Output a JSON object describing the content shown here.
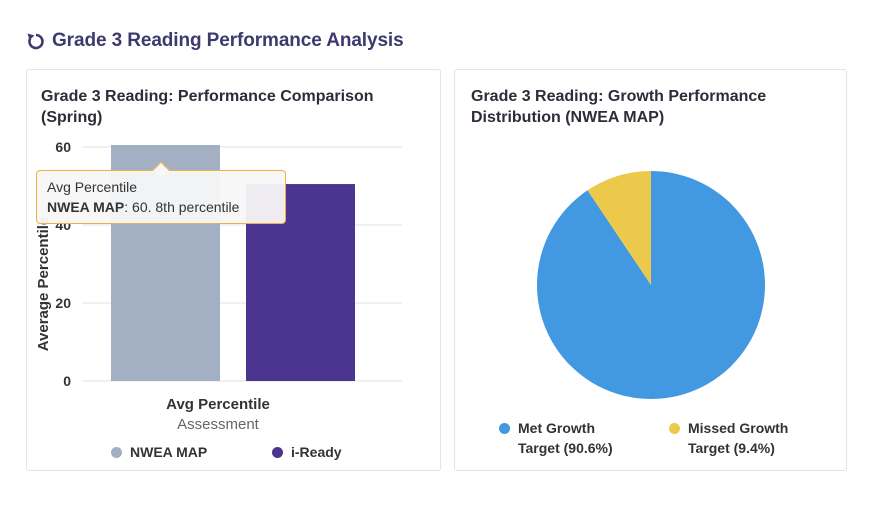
{
  "page": {
    "title": "Grade 3 Reading Performance Analysis",
    "title_icon": "refresh-icon",
    "accent": "#3d3a6e"
  },
  "chart_data": [
    {
      "type": "bar",
      "title": "Grade 3 Reading: Performance Comparison (Spring)",
      "categories": [
        "Avg Percentile"
      ],
      "series": [
        {
          "name": "NWEA MAP",
          "values": [
            60.8
          ],
          "color": "#a3afc2"
        },
        {
          "name": "i-Ready",
          "values": [
            50.5
          ],
          "color": "#4b3590"
        }
      ],
      "xlabel": "Assessment",
      "ylabel": "Average Percentile",
      "ylim": [
        0,
        60
      ],
      "yticks": [
        "0",
        "20",
        "40",
        "60"
      ],
      "grid": true,
      "legend": "bottom",
      "tooltip": {
        "header": "Avg Percentile",
        "series": "NWEA MAP",
        "text": ": 60. 8th percentile"
      }
    },
    {
      "type": "pie",
      "title": "Grade 3 Reading: Growth Performance Distribution (NWEA MAP)",
      "slices": [
        {
          "label": "Met Growth Target (90.6%)",
          "value": 90.6,
          "color": "#4299e1"
        },
        {
          "label": "Missed Growth Target (9.4%)",
          "value": 9.4,
          "color": "#ecc94b"
        }
      ],
      "legend": "bottom"
    }
  ]
}
